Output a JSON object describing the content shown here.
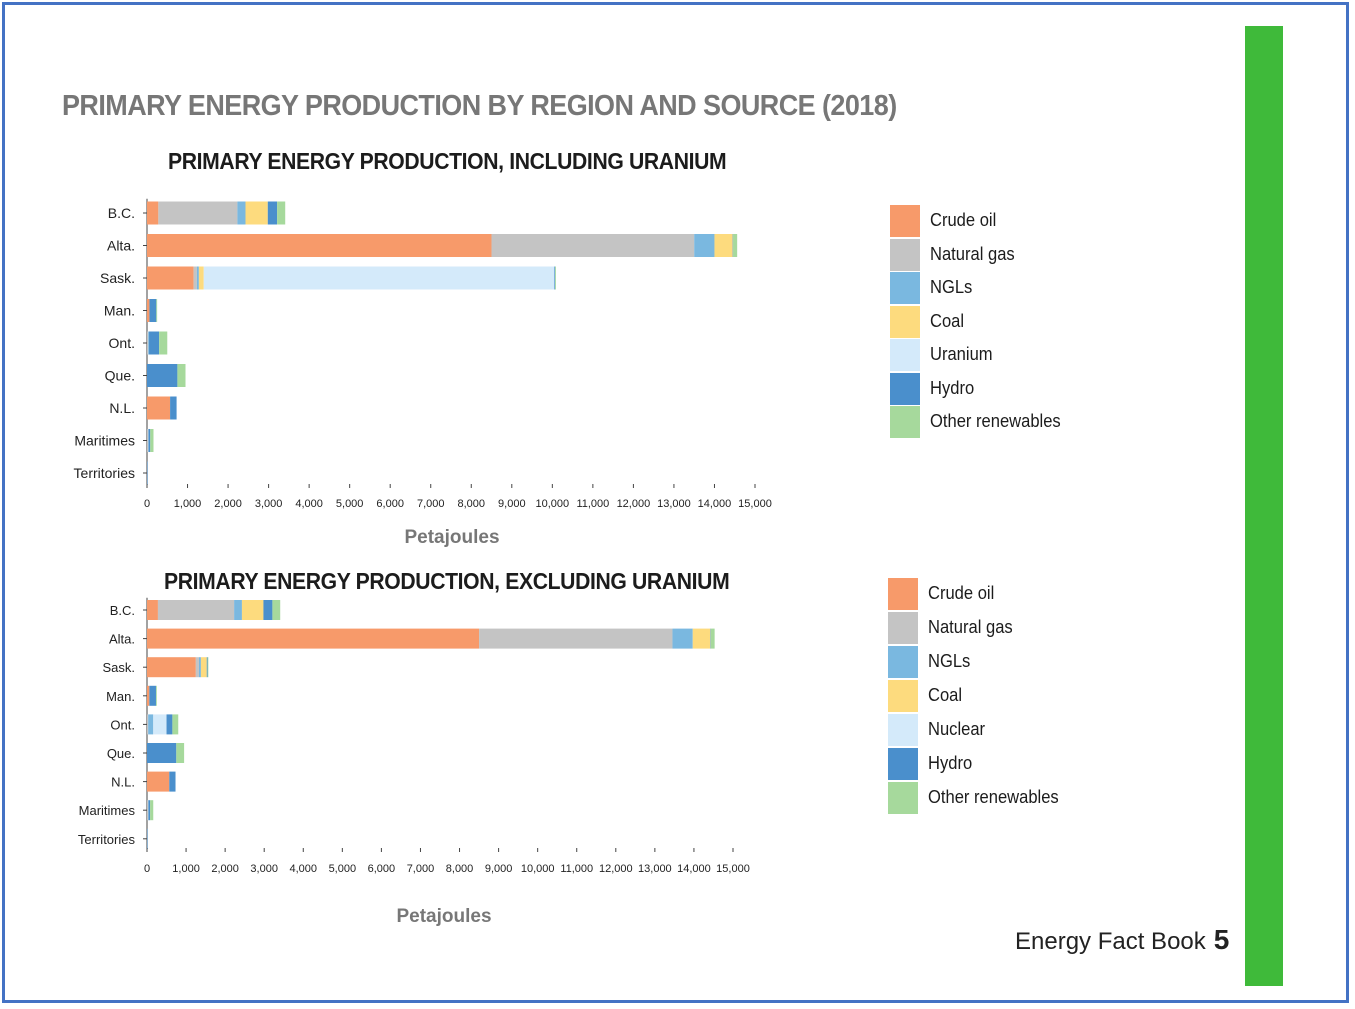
{
  "page": {
    "title": "PRIMARY ENERGY PRODUCTION BY REGION AND SOURCE (2018)",
    "footer_text": "Energy Fact Book",
    "page_number": "5",
    "accent_color": "#3fba3a",
    "frame_color": "#4472c4"
  },
  "chart_data": [
    {
      "type": "bar",
      "orientation": "horizontal",
      "stacked": true,
      "title": "PRIMARY ENERGY PRODUCTION, INCLUDING URANIUM",
      "xlabel": "Petajoules",
      "ylabel": "",
      "xlim": [
        0,
        15000
      ],
      "xticks": [
        0,
        1000,
        2000,
        3000,
        4000,
        5000,
        6000,
        7000,
        8000,
        9000,
        10000,
        11000,
        12000,
        13000,
        14000,
        15000
      ],
      "xtick_labels": [
        "0",
        "1,000",
        "2,000",
        "3,000",
        "4,000",
        "5,000",
        "6,000",
        "7,000",
        "8,000",
        "9,000",
        "10,000",
        "11,000",
        "12,000",
        "13,000",
        "14,000",
        "15,000"
      ],
      "categories": [
        "B.C.",
        "Alta.",
        "Sask.",
        "Man.",
        "Ont.",
        "Que.",
        "N.L.",
        "Maritimes",
        "Territories"
      ],
      "legend_position": "right",
      "grid": false,
      "series": [
        {
          "name": "Crude oil",
          "color": "#f79a6a",
          "values": [
            280,
            8500,
            1150,
            60,
            0,
            0,
            570,
            0,
            0
          ]
        },
        {
          "name": "Natural gas",
          "color": "#c4c4c4",
          "values": [
            1950,
            5000,
            80,
            0,
            30,
            0,
            0,
            30,
            10
          ]
        },
        {
          "name": "NGLs",
          "color": "#7ab8e0",
          "values": [
            200,
            500,
            50,
            0,
            20,
            0,
            0,
            10,
            0
          ]
        },
        {
          "name": "Coal",
          "color": "#fddb7e",
          "values": [
            550,
            450,
            120,
            0,
            0,
            0,
            0,
            0,
            0
          ]
        },
        {
          "name": "Uranium",
          "color": "#d4eafa",
          "values": [
            0,
            0,
            8650,
            0,
            0,
            0,
            0,
            0,
            0
          ]
        },
        {
          "name": "Hydro",
          "color": "#4a8fcc",
          "values": [
            230,
            10,
            20,
            170,
            250,
            750,
            160,
            40,
            10
          ]
        },
        {
          "name": "Other renewables",
          "color": "#a6d99c",
          "values": [
            200,
            100,
            20,
            20,
            200,
            200,
            0,
            80,
            0
          ]
        }
      ]
    },
    {
      "type": "bar",
      "orientation": "horizontal",
      "stacked": true,
      "title": "PRIMARY ENERGY PRODUCTION, EXCLUDING URANIUM",
      "xlabel": "Petajoules",
      "ylabel": "",
      "xlim": [
        0,
        15000
      ],
      "xticks": [
        0,
        1000,
        2000,
        3000,
        4000,
        5000,
        6000,
        7000,
        8000,
        9000,
        10000,
        11000,
        12000,
        13000,
        14000,
        15000
      ],
      "xtick_labels": [
        "0",
        "1,000",
        "2,000",
        "3,000",
        "4,000",
        "5,000",
        "6,000",
        "7,000",
        "8,000",
        "9,000",
        "10,000",
        "11,000",
        "12,000",
        "13,000",
        "14,000",
        "15,000"
      ],
      "categories": [
        "B.C.",
        "Alta.",
        "Sask.",
        "Man.",
        "Ont.",
        "Que.",
        "N.L.",
        "Maritimes",
        "Territories"
      ],
      "legend_position": "right",
      "grid": false,
      "series": [
        {
          "name": "Crude oil",
          "color": "#f79a6a",
          "values": [
            280,
            8500,
            1250,
            60,
            0,
            0,
            570,
            0,
            0
          ]
        },
        {
          "name": "Natural gas",
          "color": "#c4c4c4",
          "values": [
            1950,
            4950,
            80,
            0,
            30,
            0,
            0,
            30,
            10
          ]
        },
        {
          "name": "NGLs",
          "color": "#7ab8e0",
          "values": [
            200,
            520,
            50,
            0,
            130,
            0,
            0,
            10,
            0
          ]
        },
        {
          "name": "Coal",
          "color": "#fddb7e",
          "values": [
            550,
            450,
            150,
            0,
            0,
            0,
            0,
            0,
            0
          ]
        },
        {
          "name": "Nuclear",
          "color": "#d4eafa",
          "values": [
            0,
            0,
            0,
            0,
            340,
            0,
            0,
            0,
            0
          ]
        },
        {
          "name": "Hydro",
          "color": "#4a8fcc",
          "values": [
            230,
            10,
            20,
            170,
            150,
            750,
            160,
            40,
            10
          ]
        },
        {
          "name": "Other renewables",
          "color": "#a6d99c",
          "values": [
            200,
            100,
            20,
            20,
            150,
            200,
            0,
            80,
            0
          ]
        }
      ]
    }
  ]
}
